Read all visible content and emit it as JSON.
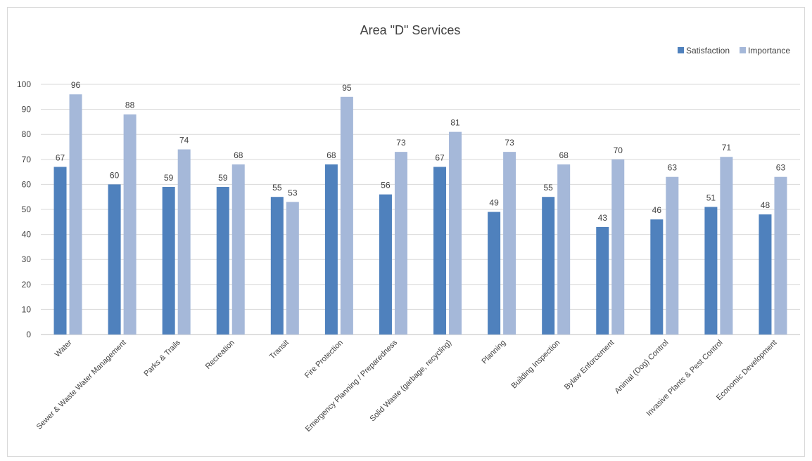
{
  "chart_data": {
    "type": "bar",
    "title": "Area \"D\" Services",
    "categories": [
      "Water",
      "Sewer & Waste Water Management",
      "Parks & Trails",
      "Recreation",
      "Transit",
      "Fire Protection",
      "Emergency Planning / Preparedness",
      "Solid Waste (garbage, recycling)",
      "Planning",
      "Building Inspection",
      "Bylaw Enforcement",
      "Animal (Dog) Control",
      "Invasive Plants & Pest Control",
      "Economic Development"
    ],
    "series": [
      {
        "name": "Satisfaction",
        "color": "#4f81bd",
        "values": [
          67,
          60,
          59,
          59,
          55,
          68,
          56,
          67,
          49,
          55,
          43,
          46,
          51,
          48
        ]
      },
      {
        "name": "Importance",
        "color": "#a5b8d9",
        "values": [
          96,
          88,
          74,
          68,
          53,
          95,
          73,
          81,
          73,
          68,
          70,
          63,
          71,
          63
        ]
      }
    ],
    "xlabel": "",
    "ylabel": "",
    "ylim": [
      0,
      100
    ],
    "yticks": [
      0,
      10,
      20,
      30,
      40,
      50,
      60,
      70,
      80,
      90,
      100
    ],
    "grid": true,
    "legend_position": "top-right",
    "data_labels": true
  }
}
